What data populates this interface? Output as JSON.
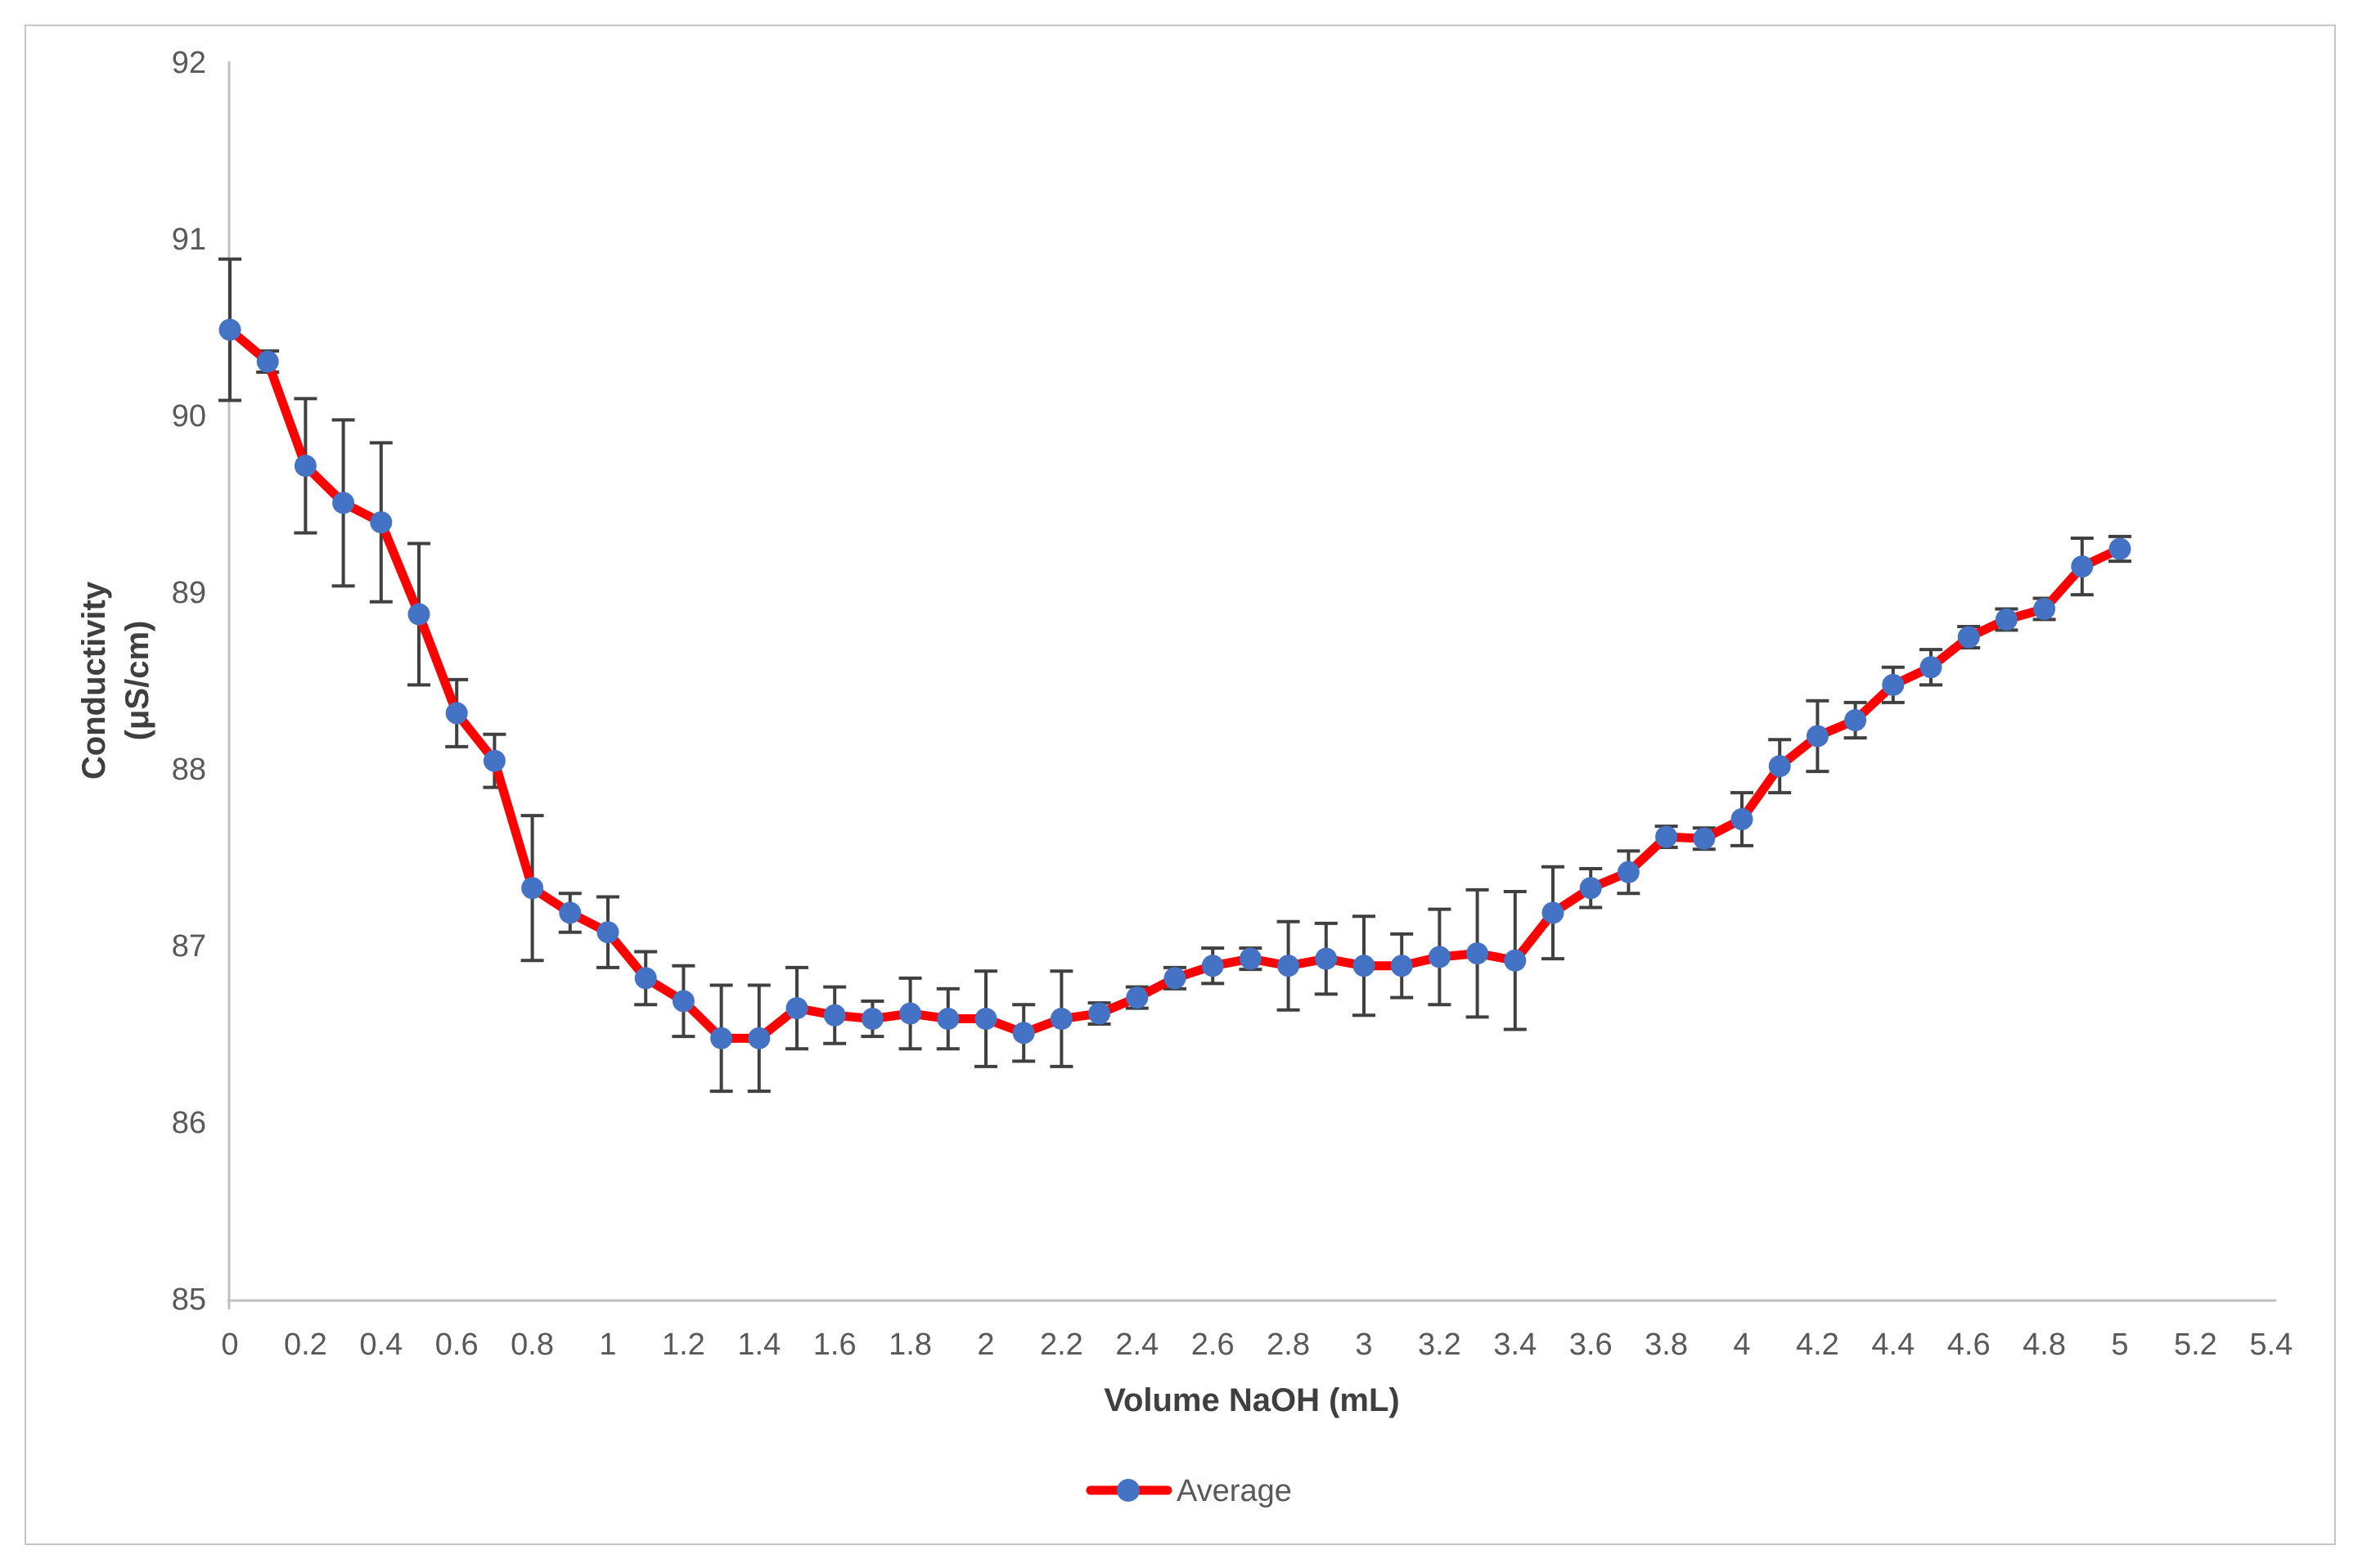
{
  "page": {
    "background": "#ffffff",
    "frame_color": "#c6c6c6"
  },
  "chart_data": {
    "type": "line",
    "title": "",
    "xlabel": "Volume NaOH (mL)",
    "ylabel_line1": "Conductivity",
    "ylabel_line2": "(μS/cm)",
    "legend": {
      "label": "Average",
      "position": "bottom-center",
      "line_color": "#FF0000",
      "marker_color": "#4472C4"
    },
    "x_axis": {
      "min": 0,
      "max": 5.4,
      "tick_values": [
        0,
        0.2,
        0.4,
        0.6,
        0.8,
        1,
        1.2,
        1.4,
        1.6,
        1.8,
        2,
        2.2,
        2.4,
        2.6,
        2.8,
        3,
        3.2,
        3.4,
        3.6,
        3.8,
        4,
        4.2,
        4.4,
        4.6,
        4.8,
        5,
        5.2,
        5.4
      ],
      "tick_labels": [
        "0",
        "0.2",
        "0.4",
        "0.6",
        "0.8",
        "1",
        "1.2",
        "1.4",
        "1.6",
        "1.8",
        "2",
        "2.2",
        "2.4",
        "2.6",
        "2.8",
        "3",
        "3.2",
        "3.4",
        "3.6",
        "3.8",
        "4",
        "4.2",
        "4.4",
        "4.6",
        "4.8",
        "5",
        "5.2",
        "5.4"
      ]
    },
    "y_axis": {
      "min": 85,
      "max": 92,
      "tick_values": [
        85,
        86,
        87,
        88,
        89,
        90,
        91,
        92
      ],
      "tick_labels": [
        "85",
        "86",
        "87",
        "88",
        "89",
        "90",
        "91",
        "92"
      ]
    },
    "grid": false,
    "axis_line_color": "#bfbfbf",
    "series": [
      {
        "name": "Average",
        "line_color": "#FF0000",
        "marker": "circle",
        "marker_color": "#4472C4",
        "error_bar_color": "#404040",
        "x": [
          0,
          0.1,
          0.2,
          0.3,
          0.4,
          0.5,
          0.6,
          0.7,
          0.8,
          0.9,
          1.0,
          1.1,
          1.2,
          1.3,
          1.4,
          1.5,
          1.6,
          1.7,
          1.8,
          1.9,
          2.0,
          2.1,
          2.2,
          2.3,
          2.4,
          2.5,
          2.6,
          2.7,
          2.8,
          2.9,
          3.0,
          3.1,
          3.2,
          3.3,
          3.4,
          3.5,
          3.6,
          3.7,
          3.8,
          3.9,
          4.0,
          4.1,
          4.2,
          4.3,
          4.4,
          4.5,
          4.6,
          4.7,
          4.8,
          4.9,
          5.0
        ],
        "y": [
          90.49,
          90.31,
          89.72,
          89.51,
          89.4,
          88.88,
          88.32,
          88.05,
          87.33,
          87.19,
          87.08,
          86.82,
          86.69,
          86.48,
          86.48,
          86.65,
          86.61,
          86.59,
          86.62,
          86.59,
          86.59,
          86.51,
          86.59,
          86.62,
          86.71,
          86.82,
          86.89,
          86.93,
          86.89,
          86.93,
          86.89,
          86.89,
          86.94,
          86.96,
          86.92,
          87.19,
          87.33,
          87.42,
          87.62,
          87.61,
          87.72,
          88.02,
          88.19,
          88.28,
          88.48,
          88.58,
          88.75,
          88.85,
          88.91,
          89.15,
          89.25
        ],
        "yerr": [
          0.4,
          0.06,
          0.38,
          0.47,
          0.45,
          0.4,
          0.19,
          0.15,
          0.41,
          0.11,
          0.2,
          0.15,
          0.2,
          0.3,
          0.3,
          0.23,
          0.16,
          0.1,
          0.2,
          0.17,
          0.27,
          0.16,
          0.27,
          0.06,
          0.06,
          0.06,
          0.1,
          0.06,
          0.25,
          0.2,
          0.28,
          0.18,
          0.27,
          0.36,
          0.39,
          0.26,
          0.11,
          0.12,
          0.06,
          0.06,
          0.15,
          0.15,
          0.2,
          0.1,
          0.1,
          0.1,
          0.06,
          0.06,
          0.06,
          0.16,
          0.07
        ]
      }
    ]
  }
}
